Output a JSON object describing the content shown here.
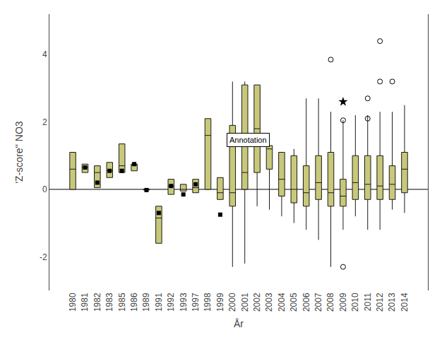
{
  "chart_data": {
    "type": "box",
    "xlabel": "År",
    "ylabel": "'Z-score'' NO3",
    "categories": [
      "1980",
      "1981",
      "1982",
      "1983",
      "1985",
      "1986",
      "1989",
      "1991",
      "1992",
      "1993",
      "1997",
      "1998",
      "1999",
      "2000",
      "2001",
      "2002",
      "2003",
      "2004",
      "2005",
      "2006",
      "2007",
      "2008",
      "2009",
      "2010",
      "2011",
      "2012",
      "2013",
      "2014"
    ],
    "series": [
      {
        "type": "box",
        "color": "#c8c87a",
        "q1": [
          0.0,
          0.5,
          0.05,
          0.35,
          0.5,
          0.55,
          -0.02,
          -1.6,
          -0.15,
          -0.05,
          -0.1,
          0.0,
          -0.3,
          -0.5,
          0.0,
          0.5,
          0.6,
          -0.2,
          -0.4,
          -0.5,
          -0.3,
          -0.5,
          -0.5,
          -0.3,
          -0.3,
          -0.3,
          -0.3,
          -0.1
        ],
        "median": [
          0.6,
          0.65,
          0.5,
          0.55,
          0.7,
          0.75,
          0.0,
          -0.85,
          0.1,
          0.0,
          0.05,
          1.6,
          -0.1,
          -0.1,
          0.5,
          1.8,
          1.2,
          0.3,
          0.0,
          -0.1,
          0.2,
          -0.1,
          -0.2,
          0.2,
          0.15,
          0.1,
          0.15,
          0.6
        ],
        "q3": [
          1.1,
          0.75,
          0.7,
          0.8,
          1.35,
          0.75,
          0.0,
          -0.5,
          0.3,
          0.15,
          0.3,
          2.1,
          0.35,
          1.9,
          3.1,
          3.1,
          1.3,
          1.1,
          1.0,
          0.7,
          1.0,
          1.1,
          0.3,
          1.0,
          1.0,
          1.0,
          0.7,
          1.1
        ],
        "whisker_low": [
          0.0,
          0.5,
          0.05,
          0.35,
          0.5,
          0.55,
          -0.02,
          -1.6,
          -0.15,
          -0.05,
          -0.1,
          0.0,
          -0.3,
          -2.3,
          -2.2,
          -0.5,
          -0.6,
          -0.8,
          -1.0,
          -1.2,
          -1.5,
          -2.3,
          -1.2,
          -0.8,
          -1.2,
          -1.2,
          -0.6,
          -0.7
        ],
        "whisker_high": [
          1.1,
          0.75,
          0.7,
          0.8,
          1.35,
          0.75,
          0.0,
          -0.5,
          0.3,
          0.15,
          0.3,
          2.1,
          0.35,
          3.2,
          3.2,
          3.1,
          1.3,
          1.1,
          1.2,
          2.7,
          2.7,
          2.3,
          2.05,
          2.2,
          2.2,
          2.3,
          2.3,
          2.5
        ],
        "outliers": [
          [],
          [],
          [],
          [],
          [],
          [],
          [],
          [],
          [],
          [],
          [],
          [],
          [],
          [],
          [],
          [],
          [],
          [],
          [],
          [],
          [],
          [
            3.85
          ],
          [
            2.05,
            -2.3
          ],
          [],
          [
            2.7,
            2.1
          ],
          [
            3.2,
            4.4
          ],
          [
            3.2
          ],
          []
        ],
        "outlier_marker": "circle-open"
      },
      {
        "type": "scatter",
        "marker": "square",
        "color": "#000000",
        "values": [
          null,
          0.65,
          0.2,
          0.55,
          0.55,
          0.75,
          -0.02,
          -0.7,
          0.1,
          -0.15,
          0.15,
          null,
          -0.75,
          null,
          null,
          null,
          null,
          null,
          null,
          null,
          null,
          null,
          null,
          null,
          null,
          null,
          null,
          null
        ]
      },
      {
        "type": "scatter",
        "marker": "star",
        "color": "#000000",
        "values": [
          null,
          null,
          null,
          null,
          null,
          null,
          null,
          null,
          null,
          null,
          null,
          null,
          null,
          null,
          null,
          null,
          null,
          null,
          null,
          null,
          null,
          null,
          2.6,
          null,
          null,
          null,
          null,
          null
        ]
      }
    ],
    "reference_line": 0.0,
    "annotations": [
      {
        "text": "Annotation",
        "x": "1999",
        "y": 1.25
      }
    ],
    "ylim": [
      -3.0,
      5.2
    ],
    "yticks": [
      -2,
      0,
      2,
      4
    ],
    "grid": false
  }
}
